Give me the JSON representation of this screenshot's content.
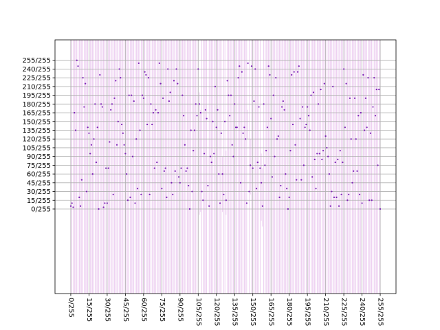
{
  "chart_data": {
    "type": "scatter",
    "title": "",
    "xlabel": "",
    "ylabel": "",
    "xlim": [
      -13,
      268
    ],
    "ylim": [
      -145,
      290
    ],
    "grid": true,
    "x_ticks": [
      0,
      15,
      30,
      45,
      60,
      75,
      90,
      105,
      120,
      135,
      150,
      165,
      180,
      195,
      210,
      225,
      240,
      255
    ],
    "x_tick_labels": [
      "0/255",
      "15/255",
      "30/255",
      "45/255",
      "60/255",
      "75/255",
      "90/255",
      "105/255",
      "120/255",
      "135/255",
      "150/255",
      "165/255",
      "180/255",
      "195/255",
      "210/255",
      "225/255",
      "240/255",
      "255/255"
    ],
    "y_ticks": [
      0,
      15,
      30,
      45,
      60,
      75,
      90,
      105,
      120,
      135,
      150,
      165,
      180,
      195,
      210,
      225,
      240,
      255
    ],
    "y_tick_labels": [
      "0/255",
      "15/255",
      "30/255",
      "45/255",
      "60/255",
      "75/255",
      "90/255",
      "105/255",
      "120/255",
      "135/255",
      "150/255",
      "165/255",
      "180/255",
      "195/255",
      "210/255",
      "225/255",
      "240/255",
      "255/255"
    ],
    "marker_color": "#7a1fb5",
    "line_color": "#e2b3e8",
    "grid_color": "#b0b0b0",
    "error_band": [
      -145,
      290
    ],
    "short_bands": [
      {
        "x": 106,
        "low": -10,
        "high": 200
      },
      {
        "x": 107,
        "low": -5,
        "high": 170
      },
      {
        "x": 113,
        "low": 5,
        "high": 90
      },
      {
        "x": 125,
        "low": -5,
        "high": 90
      },
      {
        "x": 128,
        "low": -10,
        "high": 100
      },
      {
        "x": 146,
        "low": 120,
        "high": 170
      },
      {
        "x": 148,
        "low": 25,
        "high": 120
      },
      {
        "x": 157,
        "low": -20,
        "high": 95
      },
      {
        "x": 158,
        "low": -30,
        "high": 70
      }
    ],
    "points": [
      [
        0,
        5
      ],
      [
        1,
        10
      ],
      [
        2,
        3
      ],
      [
        3,
        165
      ],
      [
        4,
        135
      ],
      [
        5,
        255
      ],
      [
        6,
        245
      ],
      [
        7,
        20
      ],
      [
        8,
        5
      ],
      [
        9,
        50
      ],
      [
        10,
        225
      ],
      [
        11,
        175
      ],
      [
        12,
        215
      ],
      [
        13,
        30
      ],
      [
        14,
        140
      ],
      [
        15,
        130
      ],
      [
        16,
        95
      ],
      [
        17,
        110
      ],
      [
        18,
        60
      ],
      [
        19,
        120
      ],
      [
        20,
        180
      ],
      [
        21,
        80
      ],
      [
        22,
        140
      ],
      [
        23,
        0
      ],
      [
        24,
        230
      ],
      [
        25,
        180
      ],
      [
        26,
        175
      ],
      [
        27,
        3
      ],
      [
        28,
        10
      ],
      [
        29,
        70
      ],
      [
        30,
        10
      ],
      [
        31,
        70
      ],
      [
        32,
        115
      ],
      [
        33,
        170
      ],
      [
        34,
        180
      ],
      [
        35,
        25
      ],
      [
        36,
        190
      ],
      [
        37,
        220
      ],
      [
        38,
        110
      ],
      [
        39,
        150
      ],
      [
        40,
        240
      ],
      [
        41,
        225
      ],
      [
        42,
        145
      ],
      [
        43,
        130
      ],
      [
        44,
        110
      ],
      [
        45,
        95
      ],
      [
        46,
        60
      ],
      [
        47,
        15
      ],
      [
        48,
        195
      ],
      [
        49,
        20
      ],
      [
        50,
        195
      ],
      [
        51,
        90
      ],
      [
        52,
        185
      ],
      [
        53,
        10
      ],
      [
        54,
        120
      ],
      [
        55,
        35
      ],
      [
        56,
        250
      ],
      [
        57,
        135
      ],
      [
        58,
        25
      ],
      [
        59,
        195
      ],
      [
        60,
        190
      ],
      [
        61,
        235
      ],
      [
        62,
        230
      ],
      [
        63,
        145
      ],
      [
        64,
        225
      ],
      [
        65,
        25
      ],
      [
        66,
        180
      ],
      [
        67,
        145
      ],
      [
        68,
        165
      ],
      [
        69,
        70
      ],
      [
        70,
        170
      ],
      [
        71,
        80
      ],
      [
        72,
        165
      ],
      [
        73,
        250
      ],
      [
        74,
        215
      ],
      [
        75,
        35
      ],
      [
        76,
        190
      ],
      [
        77,
        65
      ],
      [
        78,
        70
      ],
      [
        79,
        20
      ],
      [
        80,
        240
      ],
      [
        81,
        185
      ],
      [
        82,
        200
      ],
      [
        83,
        45
      ],
      [
        84,
        25
      ],
      [
        85,
        220
      ],
      [
        86,
        65
      ],
      [
        87,
        240
      ],
      [
        88,
        215
      ],
      [
        89,
        55
      ],
      [
        90,
        45
      ],
      [
        91,
        70
      ],
      [
        92,
        195
      ],
      [
        93,
        160
      ],
      [
        94,
        110
      ],
      [
        95,
        65
      ],
      [
        96,
        70
      ],
      [
        97,
        40
      ],
      [
        98,
        0
      ],
      [
        99,
        135
      ],
      [
        100,
        30
      ],
      [
        101,
        100
      ],
      [
        102,
        135
      ],
      [
        103,
        180
      ],
      [
        104,
        160
      ],
      [
        105,
        240
      ],
      [
        106,
        180
      ],
      [
        107,
        165
      ],
      [
        108,
        30
      ],
      [
        109,
        15
      ],
      [
        110,
        95
      ],
      [
        111,
        170
      ],
      [
        112,
        155
      ],
      [
        113,
        40
      ],
      [
        114,
        5
      ],
      [
        115,
        90
      ],
      [
        116,
        80
      ],
      [
        117,
        150
      ],
      [
        118,
        95
      ],
      [
        119,
        210
      ],
      [
        120,
        140
      ],
      [
        121,
        170
      ],
      [
        122,
        60
      ],
      [
        123,
        10
      ],
      [
        124,
        130
      ],
      [
        125,
        60
      ],
      [
        126,
        25
      ],
      [
        127,
        150
      ],
      [
        128,
        15
      ],
      [
        129,
        220
      ],
      [
        130,
        195
      ],
      [
        131,
        160
      ],
      [
        132,
        195
      ],
      [
        133,
        110
      ],
      [
        134,
        90
      ],
      [
        135,
        180
      ],
      [
        136,
        140
      ],
      [
        137,
        140
      ],
      [
        138,
        225
      ],
      [
        139,
        245
      ],
      [
        140,
        45
      ],
      [
        141,
        235
      ],
      [
        142,
        130
      ],
      [
        143,
        140
      ],
      [
        144,
        120
      ],
      [
        145,
        10
      ],
      [
        146,
        250
      ],
      [
        147,
        30
      ],
      [
        148,
        75
      ],
      [
        149,
        245
      ],
      [
        150,
        70
      ],
      [
        151,
        185
      ],
      [
        152,
        240
      ],
      [
        153,
        35
      ],
      [
        154,
        80
      ],
      [
        155,
        175
      ],
      [
        156,
        70
      ],
      [
        157,
        45
      ],
      [
        158,
        5
      ],
      [
        159,
        180
      ],
      [
        160,
        75
      ],
      [
        161,
        100
      ],
      [
        162,
        140
      ],
      [
        163,
        245
      ],
      [
        164,
        230
      ],
      [
        165,
        155
      ],
      [
        166,
        55
      ],
      [
        167,
        195
      ],
      [
        168,
        90
      ],
      [
        169,
        225
      ],
      [
        170,
        120
      ],
      [
        171,
        125
      ],
      [
        172,
        20
      ],
      [
        173,
        40
      ],
      [
        174,
        175
      ],
      [
        175,
        185
      ],
      [
        176,
        170
      ],
      [
        177,
        60
      ],
      [
        178,
        35
      ],
      [
        179,
        0
      ],
      [
        180,
        20
      ],
      [
        181,
        100
      ],
      [
        182,
        230
      ],
      [
        183,
        145
      ],
      [
        184,
        235
      ],
      [
        185,
        110
      ],
      [
        186,
        50
      ],
      [
        187,
        235
      ],
      [
        188,
        245
      ],
      [
        189,
        155
      ],
      [
        190,
        50
      ],
      [
        191,
        175
      ],
      [
        192,
        75
      ],
      [
        193,
        140
      ],
      [
        194,
        145
      ],
      [
        195,
        175
      ],
      [
        196,
        160
      ],
      [
        197,
        135
      ],
      [
        198,
        195
      ],
      [
        199,
        55
      ],
      [
        200,
        200
      ],
      [
        201,
        85
      ],
      [
        202,
        35
      ],
      [
        203,
        95
      ],
      [
        204,
        180
      ],
      [
        205,
        95
      ],
      [
        206,
        205
      ],
      [
        207,
        85
      ],
      [
        208,
        100
      ],
      [
        209,
        215
      ],
      [
        210,
        125
      ],
      [
        211,
        105
      ],
      [
        212,
        90
      ],
      [
        213,
        60
      ],
      [
        214,
        5
      ],
      [
        215,
        30
      ],
      [
        216,
        210
      ],
      [
        217,
        20
      ],
      [
        218,
        80
      ],
      [
        219,
        20
      ],
      [
        220,
        85
      ],
      [
        221,
        5
      ],
      [
        222,
        100
      ],
      [
        223,
        25
      ],
      [
        224,
        80
      ],
      [
        225,
        240
      ],
      [
        226,
        140
      ],
      [
        227,
        215
      ],
      [
        228,
        15
      ],
      [
        229,
        25
      ],
      [
        230,
        190
      ],
      [
        231,
        120
      ],
      [
        232,
        45
      ],
      [
        233,
        65
      ],
      [
        234,
        190
      ],
      [
        235,
        120
      ],
      [
        236,
        65
      ],
      [
        237,
        160
      ],
      [
        238,
        25
      ],
      [
        239,
        165
      ],
      [
        240,
        10
      ],
      [
        241,
        230
      ],
      [
        242,
        135
      ],
      [
        243,
        190
      ],
      [
        244,
        140
      ],
      [
        245,
        225
      ],
      [
        246,
        15
      ],
      [
        247,
        130
      ],
      [
        248,
        15
      ],
      [
        249,
        175
      ],
      [
        250,
        225
      ],
      [
        251,
        160
      ],
      [
        252,
        205
      ],
      [
        253,
        75
      ],
      [
        254,
        205
      ],
      [
        255,
        0
      ]
    ]
  }
}
